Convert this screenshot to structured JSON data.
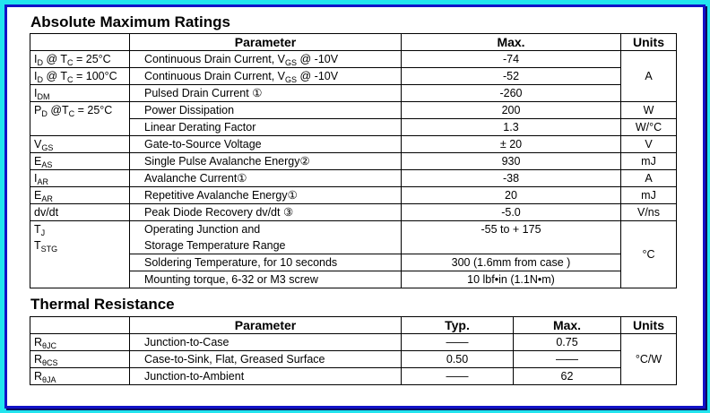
{
  "sections": [
    {
      "title": "Absolute Maximum Ratings",
      "headers": [
        "Parameter",
        "Max.",
        "Units"
      ],
      "rows": [
        {
          "symbol": [
            "I",
            {
              "sub": "D"
            },
            " @ T",
            {
              "sub": "C"
            },
            " = 25°C"
          ],
          "parameter": [
            "Continuous Drain Current, V",
            {
              "sub": "GS"
            },
            " @ -10V"
          ],
          "max": "-74",
          "units": "A"
        },
        {
          "symbol": [
            "I",
            {
              "sub": "D"
            },
            " @ T",
            {
              "sub": "C"
            },
            " = 100°C"
          ],
          "parameter": [
            "Continuous Drain Current, V",
            {
              "sub": "GS"
            },
            " @ -10V"
          ],
          "max": "-52"
        },
        {
          "symbol": [
            "I",
            {
              "sub": "DM"
            }
          ],
          "parameter": "Pulsed Drain Current ①",
          "max": "-260"
        },
        {
          "symbol": [
            "P",
            {
              "sub": "D"
            },
            " @T",
            {
              "sub": "C"
            },
            " = 25°C"
          ],
          "parameter": "Power Dissipation",
          "max": "200",
          "units": "W"
        },
        {
          "parameter": "Linear Derating Factor",
          "max": "1.3",
          "units": "W/°C"
        },
        {
          "symbol": [
            "V",
            {
              "sub": "GS"
            }
          ],
          "parameter": "Gate-to-Source  Voltage",
          "max": "± 20",
          "units": "V"
        },
        {
          "symbol": [
            "E",
            {
              "sub": "AS"
            }
          ],
          "parameter": "Single Pulse Avalanche Energy②",
          "max": "930",
          "units": "mJ"
        },
        {
          "symbol": [
            "I",
            {
              "sub": "AR"
            }
          ],
          "parameter": "Avalanche  Current①",
          "max": "-38",
          "units": "A"
        },
        {
          "symbol": [
            "E",
            {
              "sub": "AR"
            }
          ],
          "parameter": "Repetitive Avalanche Energy①",
          "max": "20",
          "units": "mJ"
        },
        {
          "symbol": "dv/dt",
          "parameter": "Peak Diode Recovery dv/dt ③",
          "max": "-5.0",
          "units": "V/ns"
        },
        {
          "symbol": {
            "lines": [
              [
                "T",
                {
                  "sub": "J"
                }
              ],
              [
                "T",
                {
                  "sub": "STG"
                }
              ]
            ]
          },
          "parameter": {
            "lines": [
              "Operating Junction and",
              "Storage Temperature Range"
            ]
          },
          "max": "-55  to + 175",
          "units": "°C"
        },
        {
          "parameter": "Soldering Temperature, for 10 seconds",
          "max": "300 (1.6mm from case )"
        },
        {
          "parameter": "Mounting torque, 6-32 or M3 screw",
          "max": "10 lbf•in (1.1N•m)"
        }
      ]
    },
    {
      "title": "Thermal  Resistance",
      "headers": [
        "Parameter",
        "Typ.",
        "Max.",
        "Units"
      ],
      "rows": [
        {
          "symbol": [
            "R",
            {
              "sub": "θJC"
            }
          ],
          "parameter": "Junction-to-Case",
          "typ": "——",
          "max": "0.75",
          "units": "°C/W"
        },
        {
          "symbol": [
            "R",
            {
              "sub": "θCS"
            }
          ],
          "parameter": "Case-to-Sink, Flat, Greased Surface",
          "typ": "0.50",
          "max": "——"
        },
        {
          "symbol": [
            "R",
            {
              "sub": "θJA"
            }
          ],
          "parameter": "Junction-to-Ambient",
          "typ": "——",
          "max": "62"
        }
      ]
    }
  ]
}
